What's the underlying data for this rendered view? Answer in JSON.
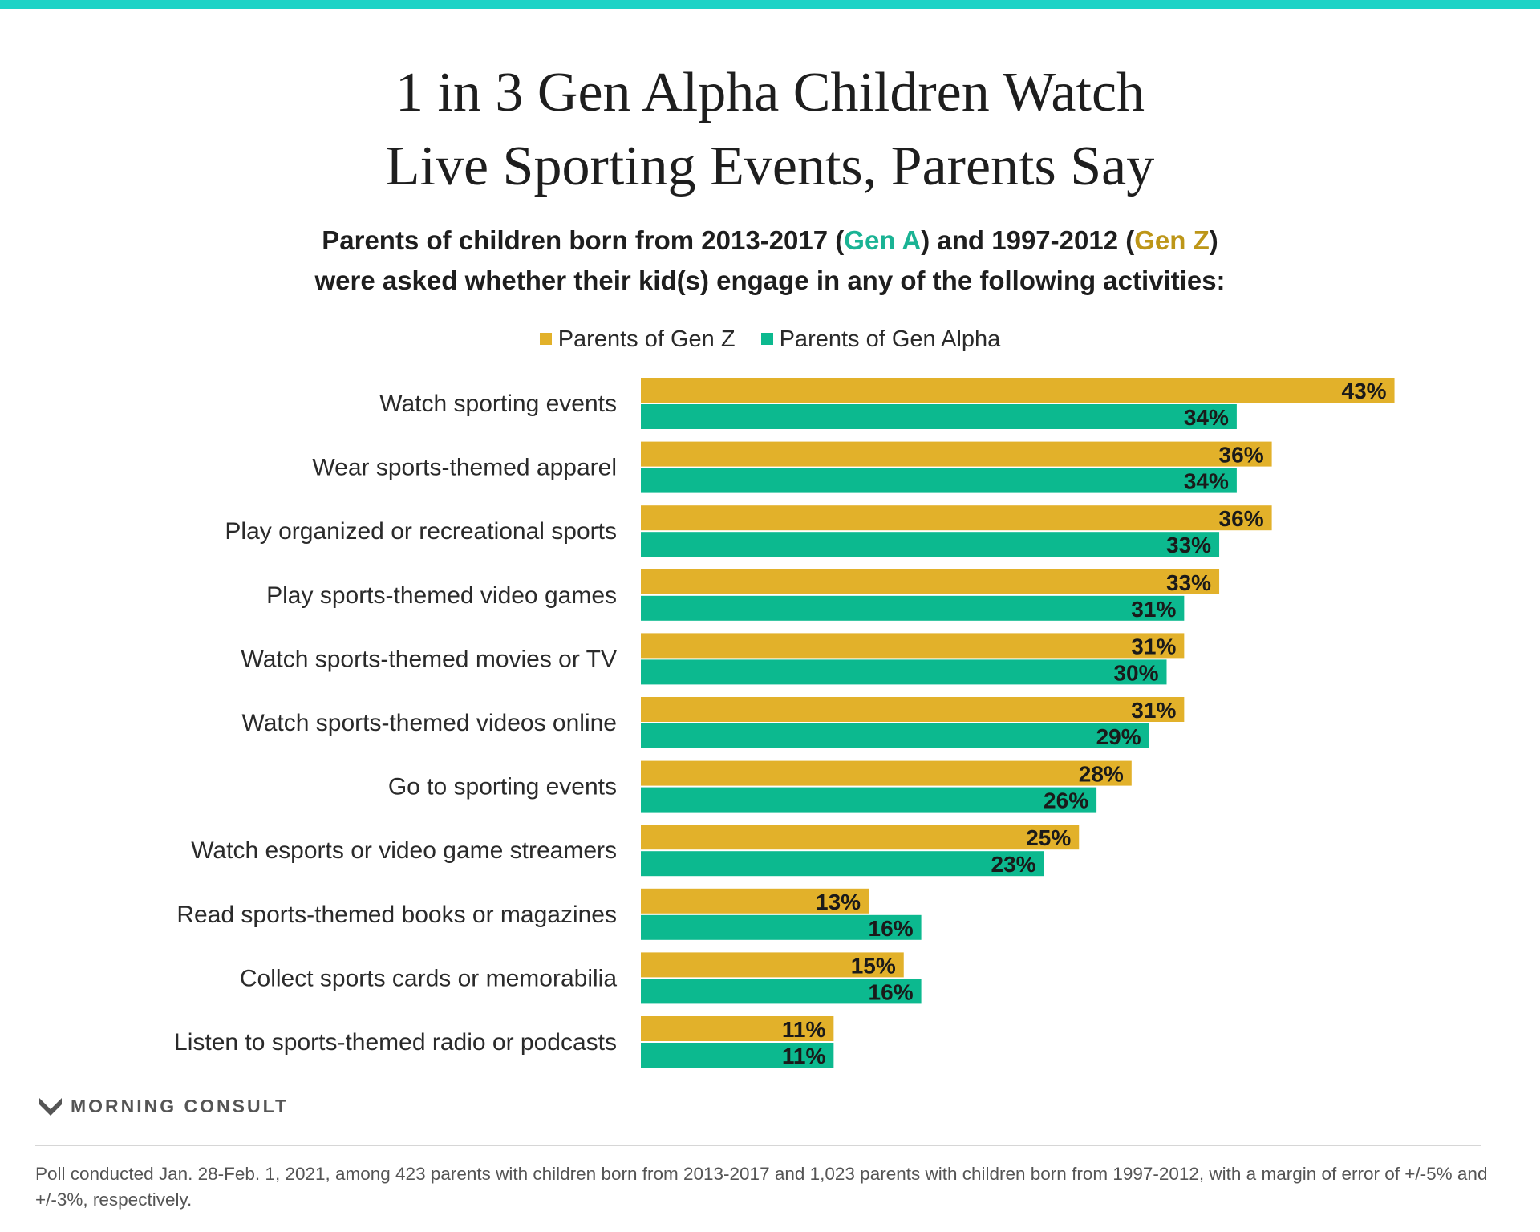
{
  "title_lines": [
    "1 in 3 Gen Alpha Children Watch",
    "Live Sporting Events, Parents Say"
  ],
  "subtitle": {
    "l1_a": "Parents of children born from 2013-2017 (",
    "l1_gen_a": "Gen A",
    "l1_b": ") and 1997-2012 (",
    "l1_gen_z": "Gen Z",
    "l1_c": ")",
    "l2": "were asked whether their kid(s) engage in any of the following activities:"
  },
  "colors": {
    "gen_z": "#e2b12a",
    "gen_alpha": "#0cb98f",
    "top_bar": "#1dd3c6"
  },
  "legend": [
    "Parents of Gen Z",
    "Parents of Gen Alpha"
  ],
  "chart_data": {
    "type": "bar",
    "orientation": "horizontal",
    "categories": [
      "Watch sporting events",
      "Wear sports-themed apparel",
      "Play organized or recreational sports",
      "Play sports-themed video games",
      "Watch sports-themed movies or TV",
      "Watch sports-themed videos online",
      "Go to sporting events",
      "Watch esports or video game streamers",
      "Read sports-themed books or magazines",
      "Collect sports cards or memorabilia",
      "Listen to sports-themed radio or podcasts"
    ],
    "series": [
      {
        "name": "Parents of Gen Z",
        "values": [
          43,
          36,
          36,
          33,
          31,
          31,
          28,
          25,
          13,
          15,
          11
        ]
      },
      {
        "name": "Parents of Gen Alpha",
        "values": [
          34,
          34,
          33,
          31,
          30,
          29,
          26,
          23,
          16,
          16,
          11
        ]
      }
    ],
    "value_suffix": "%",
    "xlim": [
      0,
      50
    ],
    "legend_position": "top",
    "grid": false
  },
  "logo_text": "MORNING CONSULT",
  "note": "Poll conducted Jan. 28-Feb. 1, 2021, among 423 parents with children born from 2013-2017 and 1,023 parents with children born from 1997-2012, with a margin of error of +/-5% and +/-3%, respectively."
}
